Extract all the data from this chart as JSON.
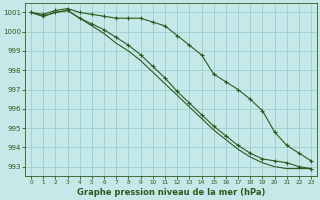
{
  "title": "Graphe pression niveau de la mer (hPa)",
  "background_color": "#c5e8e8",
  "grid_color": "#9ecece",
  "line_color": "#2d5a1e",
  "xlim": [
    -0.5,
    23.5
  ],
  "ylim": [
    992.5,
    1001.5
  ],
  "yticks": [
    993,
    994,
    995,
    996,
    997,
    998,
    999,
    1000,
    1001
  ],
  "xticks": [
    0,
    1,
    2,
    3,
    4,
    5,
    6,
    7,
    8,
    9,
    10,
    11,
    12,
    13,
    14,
    15,
    16,
    17,
    18,
    19,
    20,
    21,
    22,
    23
  ],
  "series1": [
    1001.0,
    1000.9,
    1001.1,
    1001.2,
    1001.0,
    1000.9,
    1000.8,
    1000.7,
    1000.7,
    1000.7,
    1000.5,
    1000.3,
    999.8,
    999.3,
    998.8,
    997.8,
    997.4,
    997.0,
    996.5,
    995.9,
    994.8,
    994.1,
    993.7,
    993.3
  ],
  "series2": [
    1001.0,
    1000.8,
    1001.0,
    1001.1,
    1000.7,
    1000.4,
    1000.1,
    999.7,
    999.3,
    998.8,
    998.2,
    997.6,
    996.9,
    996.3,
    995.7,
    995.1,
    994.6,
    994.1,
    993.7,
    993.4,
    993.3,
    993.2,
    993.0,
    992.9
  ],
  "series3": [
    1001.0,
    1000.8,
    1001.0,
    1001.1,
    1000.7,
    1000.3,
    999.9,
    999.4,
    999.0,
    998.5,
    997.9,
    997.3,
    996.7,
    996.1,
    995.5,
    994.9,
    994.4,
    993.9,
    993.5,
    993.2,
    993.0,
    992.9,
    992.9,
    992.9
  ]
}
